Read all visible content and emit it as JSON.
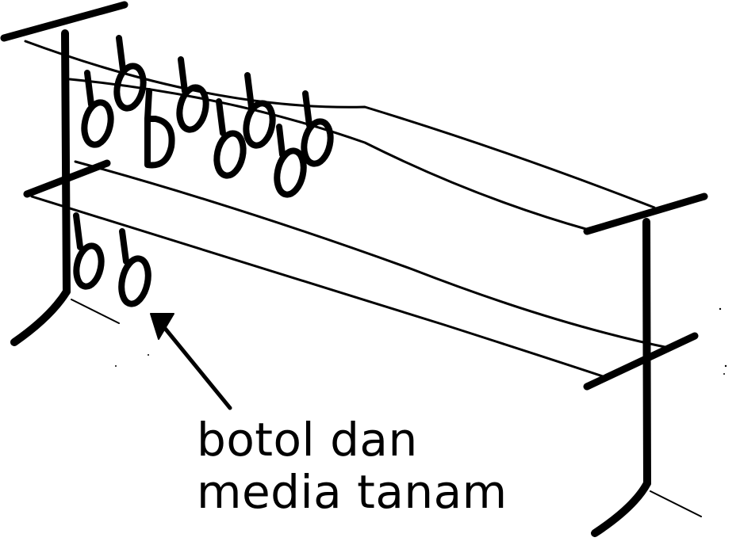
{
  "label": {
    "line1": "botol dan",
    "line2": "media tanam"
  },
  "colors": {
    "ink": "#000000",
    "paper": "#ffffff"
  }
}
